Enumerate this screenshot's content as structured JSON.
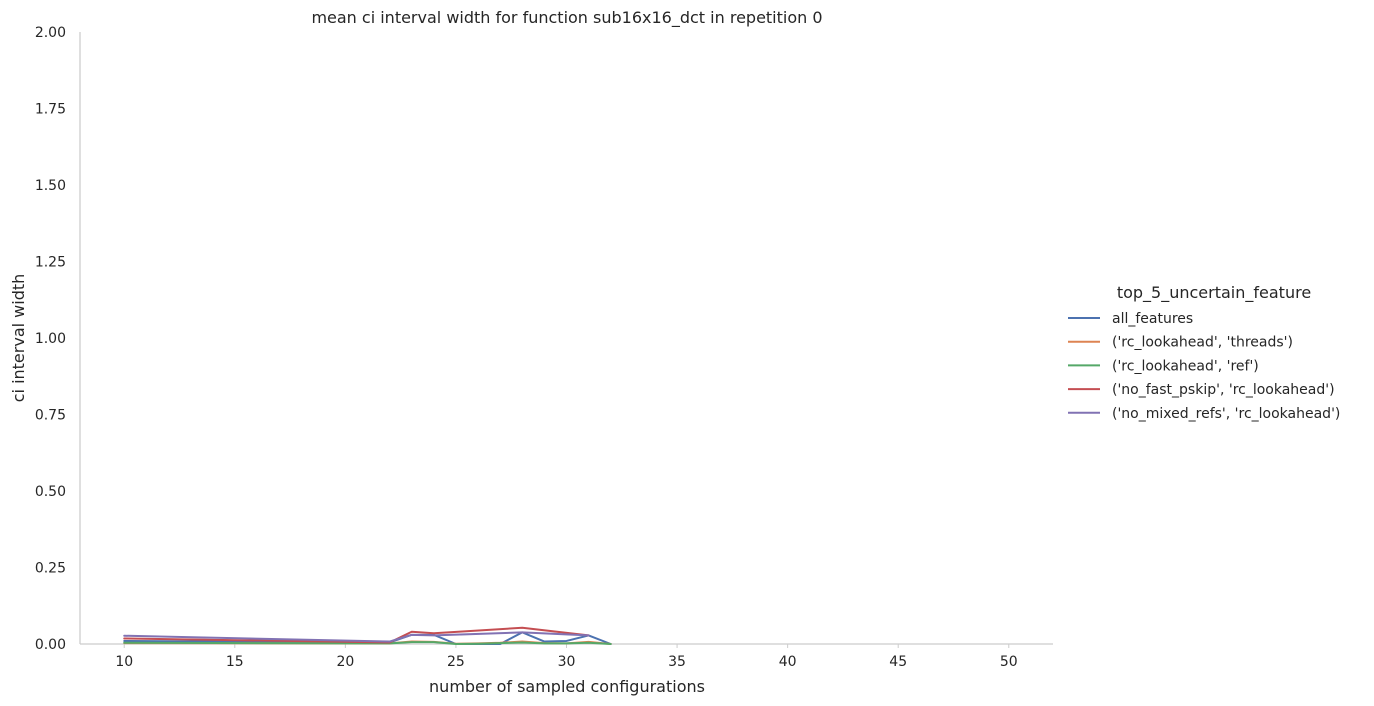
{
  "chart_data": {
    "type": "line",
    "title": "mean ci interval width for function sub16x16_dct in repetition 0",
    "xlabel": "number of sampled configurations",
    "ylabel": "ci interval width",
    "xlim": [
      8,
      52
    ],
    "ylim": [
      0,
      2.0
    ],
    "xticks": [
      10,
      15,
      20,
      25,
      30,
      35,
      40,
      45,
      50
    ],
    "yticks": [
      "0.00",
      "0.25",
      "0.50",
      "0.75",
      "1.00",
      "1.25",
      "1.50",
      "1.75",
      "2.00"
    ],
    "grid": false,
    "legend": {
      "title": "top_5_uncertain_feature",
      "placement": "right"
    },
    "series": [
      {
        "name": "all_features",
        "color": "#4c72b0",
        "x": [
          10,
          22,
          23,
          24,
          25,
          26,
          27,
          28,
          29,
          30,
          31,
          32
        ],
        "y": [
          0.01,
          0.005,
          0.03,
          0.03,
          0.0,
          0.0,
          0.0,
          0.038,
          0.008,
          0.01,
          0.028,
          0.0
        ]
      },
      {
        "name": "('rc_lookahead', 'threads')",
        "color": "#dd8452",
        "x": [
          10,
          22,
          23,
          24,
          25,
          26,
          27,
          28,
          29,
          30,
          31,
          32
        ],
        "y": [
          0.003,
          0.002,
          0.008,
          0.007,
          0.001,
          0.002,
          0.004,
          0.008,
          0.003,
          0.002,
          0.007,
          0.0
        ]
      },
      {
        "name": "('rc_lookahead', 'ref')",
        "color": "#55a868",
        "x": [
          10,
          22,
          23,
          24,
          25,
          26,
          27,
          28,
          29,
          30,
          31,
          32
        ],
        "y": [
          0.004,
          0.002,
          0.006,
          0.006,
          0.0,
          0.001,
          0.003,
          0.005,
          0.002,
          0.002,
          0.004,
          0.0
        ]
      },
      {
        "name": "('no_fast_pskip', 'rc_lookahead')",
        "color": "#c44e52",
        "x": [
          10,
          22,
          23,
          24,
          28,
          31
        ],
        "y": [
          0.018,
          0.005,
          0.04,
          0.035,
          0.053,
          0.028
        ]
      },
      {
        "name": "('no_mixed_refs', 'rc_lookahead')",
        "color": "#8172b3",
        "x": [
          10,
          22,
          23,
          24,
          28,
          31
        ],
        "y": [
          0.027,
          0.008,
          0.03,
          0.028,
          0.038,
          0.028
        ]
      }
    ]
  }
}
